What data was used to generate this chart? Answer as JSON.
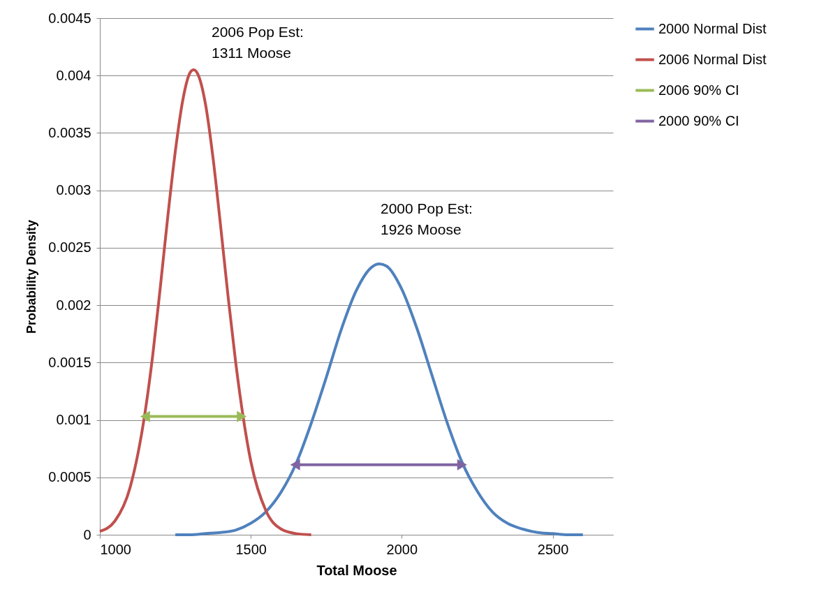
{
  "chart_data": {
    "type": "line",
    "xlabel": "Total Moose",
    "ylabel": "Probability Density",
    "xlim": [
      1000,
      2700
    ],
    "xticks": [
      1000,
      1500,
      2000,
      2500
    ],
    "ylim": [
      0,
      0.0045
    ],
    "yticks": [
      0,
      0.0005,
      0.001,
      0.0015,
      0.002,
      0.0025,
      0.003,
      0.0035,
      0.004,
      0.0045
    ],
    "grid": "y",
    "legend": "right",
    "line_style": "solid",
    "series": [
      {
        "name": "2000 Normal Dist",
        "color": "#4f81bd",
        "x": [
          1250,
          1300,
          1350,
          1400,
          1450,
          1500,
          1550,
          1600,
          1650,
          1700,
          1750,
          1800,
          1850,
          1900,
          1926,
          1950,
          2000,
          2050,
          2100,
          2150,
          2200,
          2250,
          2300,
          2350,
          2400,
          2450,
          2500,
          2550,
          2600
        ],
        "values": [
          0,
          0,
          1e-05,
          2e-05,
          4e-05,
          0.0001,
          0.0002,
          0.00037,
          0.00062,
          0.00097,
          0.00137,
          0.00179,
          0.00213,
          0.00233,
          0.00236,
          0.00234,
          0.00214,
          0.0018,
          0.00139,
          0.00098,
          0.00063,
          0.00038,
          0.0002,
          0.0001,
          5e-05,
          2e-05,
          1e-05,
          0,
          0
        ]
      },
      {
        "name": "2006 Normal Dist",
        "color": "#c0504d",
        "x": [
          1000,
          1050,
          1100,
          1150,
          1175,
          1200,
          1225,
          1250,
          1275,
          1300,
          1311,
          1325,
          1350,
          1375,
          1400,
          1425,
          1450,
          1500,
          1550,
          1600,
          1650,
          1700
        ],
        "values": [
          3e-05,
          0.00012,
          0.00041,
          0.00107,
          0.00156,
          0.00215,
          0.00277,
          0.00334,
          0.00379,
          0.00403,
          0.00405,
          0.00401,
          0.00375,
          0.00328,
          0.00269,
          0.00207,
          0.0015,
          0.00064,
          0.00021,
          5e-05,
          1e-05,
          0
        ]
      },
      {
        "name": "2006 90% CI",
        "color": "#9bbb59",
        "marker": "triangle",
        "x": [
          1150,
          1470
        ],
        "values": [
          0.00103,
          0.00103
        ]
      },
      {
        "name": "2000 90% CI",
        "color": "#8064a2",
        "marker": "triangle",
        "x": [
          1647,
          2200
        ],
        "values": [
          0.00061,
          0.00061
        ]
      }
    ],
    "annotations": [
      "2006 Pop Est:\n1311 Moose",
      "2000 Pop Est:\n1926 Moose"
    ]
  }
}
